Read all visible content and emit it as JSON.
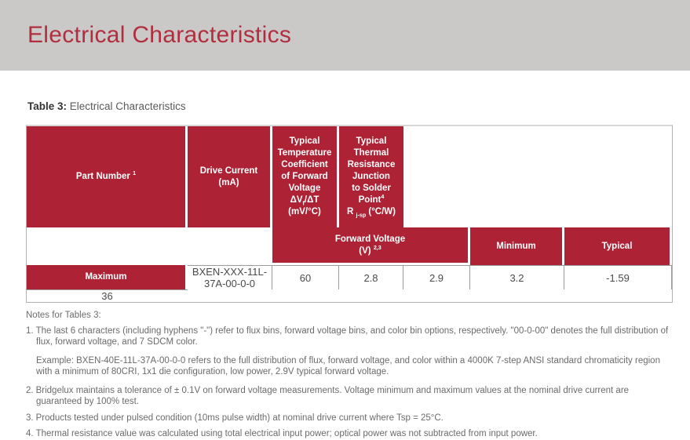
{
  "banner": {
    "title": "Electrical Characteristics"
  },
  "caption": {
    "label": "Table 3:",
    "text": "Electrical Characteristics"
  },
  "colors": {
    "brand_red": "#ad2235",
    "banner_gray": "#cbc9c8"
  },
  "table": {
    "header": {
      "part_number": {
        "text": "Part Number",
        "sup": "1"
      },
      "drive_current": {
        "line1": "Drive Current",
        "line2": "(mA)"
      },
      "forward_voltage": {
        "text": "Forward Voltage",
        "unit": "(V)",
        "sup": "2,3"
      },
      "minimum": "Minimum",
      "typical": "Typical",
      "maximum": "Maximum",
      "temp_coeff": {
        "l1": "Typical",
        "l2": "Temperature",
        "l3": "Coefficient",
        "l4": "of Forward",
        "l5": "Voltage",
        "f1": "ΔV",
        "fsub": "f",
        "f2": "/ΔT",
        "unit": "(mV/°C)"
      },
      "thermal": {
        "l1": "Typical",
        "l2": "Thermal",
        "l3": "Resistance",
        "l4": "Junction",
        "l5": "to Solder Point",
        "sup": "4",
        "r": "R",
        "rsub": "j-sp",
        "runit": " (°C/W)"
      }
    },
    "rows": [
      {
        "part_number": "BXEN-XXX-11L-37A-00-0-0",
        "drive_current": "60",
        "vf_min": "2.8",
        "vf_typ": "2.9",
        "vf_max": "3.2",
        "temp_coeff": "-1.59",
        "thermal_resistance": "36"
      }
    ]
  },
  "notes": {
    "title": "Notes for Tables 3:",
    "items": [
      {
        "num": "1.",
        "text": "The last 6 characters (including hyphens \"-\") refer to flux bins, forward voltage bins, and color bin options, respectively. \"00-0-00\" denotes the full distribution of flux, forward voltage, and 7 SDCM color."
      },
      {
        "num": "",
        "text": "Example: BXEN-40E-11L-37A-00-0-0 refers to the full distribution of flux, forward voltage, and color within a 4000K 7-step ANSI standard chromaticity region with a minimum of 80CRI, 1x1 die configuration, low power, 2.9V typical forward voltage."
      },
      {
        "num": "2.",
        "text": "Bridgelux maintains a tolerance of ± 0.1V on forward voltage measurements. Voltage minimum and maximum values at the nominal drive current are guaranteed by 100% test."
      },
      {
        "num": "3.",
        "text": "Products tested under pulsed condition (10ms pulse width) at nominal drive current where Tsp = 25°C."
      },
      {
        "num": "4.",
        "text": "Thermal resistance value was calculated using total electrical input power; optical power was not subtracted from input power."
      }
    ]
  }
}
